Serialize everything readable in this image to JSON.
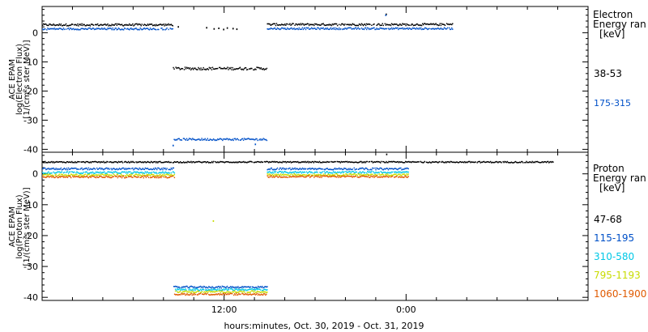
{
  "chart_data": [
    {
      "type": "scatter",
      "panel": "electron",
      "ylabel_lines": [
        "ACE EPAM",
        "log(Electron Flux)",
        "[1/(cm²s ster MeV)]"
      ],
      "ylim": [
        -41,
        9
      ],
      "yticks": [
        0,
        -10,
        -20,
        -30,
        -40
      ],
      "legend_title_lines": [
        "Electron",
        "Energy ran",
        "[keV]"
      ],
      "series": [
        {
          "name": "38-53",
          "color": "#000000",
          "segments": [
            {
              "x0": 0,
              "x1": 8.62,
              "y": 2.7,
              "noise": 0.35
            },
            {
              "x0": 8.62,
              "x1": 14.82,
              "y": -12.3,
              "noise": 0.45
            },
            {
              "x0": 14.82,
              "x1": 27.07,
              "y": 2.8,
              "noise": 0.35
            }
          ],
          "scatter": [
            [
              8.94,
              2.0
            ],
            [
              10.81,
              1.7
            ],
            [
              11.3,
              1.3
            ],
            [
              11.61,
              1.5
            ],
            [
              11.93,
              1.1
            ],
            [
              12.17,
              1.6
            ],
            [
              12.55,
              1.4
            ],
            [
              12.8,
              1.2
            ],
            [
              22.65,
              6.3
            ]
          ]
        },
        {
          "name": "175-315",
          "color": "#0050c8",
          "segments": [
            {
              "x0": 0,
              "x1": 8.62,
              "y": 1.3,
              "noise": 0.3
            },
            {
              "x0": 8.62,
              "x1": 14.82,
              "y": -36.6,
              "noise": 0.35
            },
            {
              "x0": 14.82,
              "x1": 27.07,
              "y": 1.4,
              "noise": 0.3
            }
          ],
          "scatter": [
            [
              8.6,
              -38.7
            ],
            [
              14.02,
              -38.3
            ],
            [
              22.62,
              6.0
            ]
          ]
        }
      ]
    },
    {
      "type": "scatter",
      "panel": "proton",
      "ylabel_lines": [
        "ACE EPAM",
        "log(Proton Flux)",
        "[1/(cm²s ster MeV)]"
      ],
      "ylim": [
        -41,
        7
      ],
      "yticks": [
        0,
        -10,
        -20,
        -30,
        -40
      ],
      "legend_title_lines": [
        "Proton",
        "Energy ran",
        "[keV]"
      ],
      "series": [
        {
          "name": "47-68",
          "color": "#000000",
          "segments": [
            {
              "x0": 0,
              "x1": 33.7,
              "y": 3.8,
              "noise": 0.2
            }
          ],
          "scatter": [
            [
              22.68,
              6.3
            ]
          ]
        },
        {
          "name": "115-195",
          "color": "#0050c8",
          "segments": [
            {
              "x0": 0,
              "x1": 8.65,
              "y": 1.6,
              "noise": 0.3
            },
            {
              "x0": 8.65,
              "x1": 14.82,
              "y": -36.7,
              "noise": 0.3
            },
            {
              "x0": 14.82,
              "x1": 24.12,
              "y": 1.6,
              "noise": 0.3
            }
          ],
          "scatter": []
        },
        {
          "name": "310-580",
          "color": "#00c8e6",
          "segments": [
            {
              "x0": 0,
              "x1": 8.7,
              "y": 0.4,
              "noise": 0.3
            },
            {
              "x0": 8.7,
              "x1": 14.82,
              "y": -37.5,
              "noise": 0.3
            },
            {
              "x0": 14.82,
              "x1": 24.12,
              "y": 0.5,
              "noise": 0.3
            }
          ],
          "scatter": []
        },
        {
          "name": "795-1193",
          "color": "#c8dc00",
          "segments": [
            {
              "x0": 0,
              "x1": 8.7,
              "y": -0.4,
              "noise": 0.3
            },
            {
              "x0": 8.7,
              "x1": 14.82,
              "y": -38.2,
              "noise": 0.3
            },
            {
              "x0": 14.82,
              "x1": 24.12,
              "y": -0.3,
              "noise": 0.3
            }
          ],
          "scatter": [
            [
              11.25,
              -15.3
            ]
          ]
        },
        {
          "name": "1060-1900",
          "color": "#e05a00",
          "segments": [
            {
              "x0": 0,
              "x1": 8.7,
              "y": -1.0,
              "noise": 0.3
            },
            {
              "x0": 8.7,
              "x1": 14.82,
              "y": -39.0,
              "noise": 0.3
            },
            {
              "x0": 14.82,
              "x1": 24.12,
              "y": -0.9,
              "noise": 0.3
            }
          ],
          "scatter": []
        }
      ]
    }
  ],
  "xaxis": {
    "label": "hours:minutes, Oct. 30, 2019 - Oct. 31, 2019",
    "xlim": [
      0,
      36
    ],
    "major_ticks": [
      {
        "x": 12,
        "label": "12:00"
      },
      {
        "x": 24,
        "label": "0:00"
      }
    ],
    "minor_step": 2
  }
}
